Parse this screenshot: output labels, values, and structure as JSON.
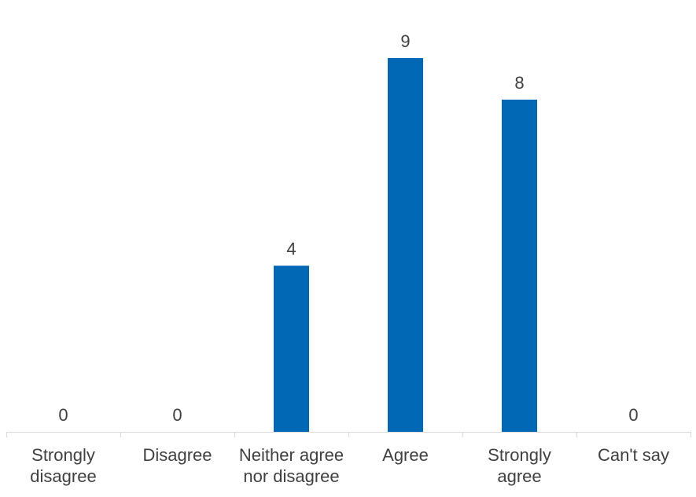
{
  "chart_data": {
    "type": "bar",
    "categories": [
      "Strongly\ndisagree",
      "Disagree",
      "Neither agree\nnor disagree",
      "Agree",
      "Strongly\nagree",
      "Can't say"
    ],
    "values": [
      0,
      0,
      4,
      9,
      8,
      0
    ],
    "color": "#0068b5"
  }
}
